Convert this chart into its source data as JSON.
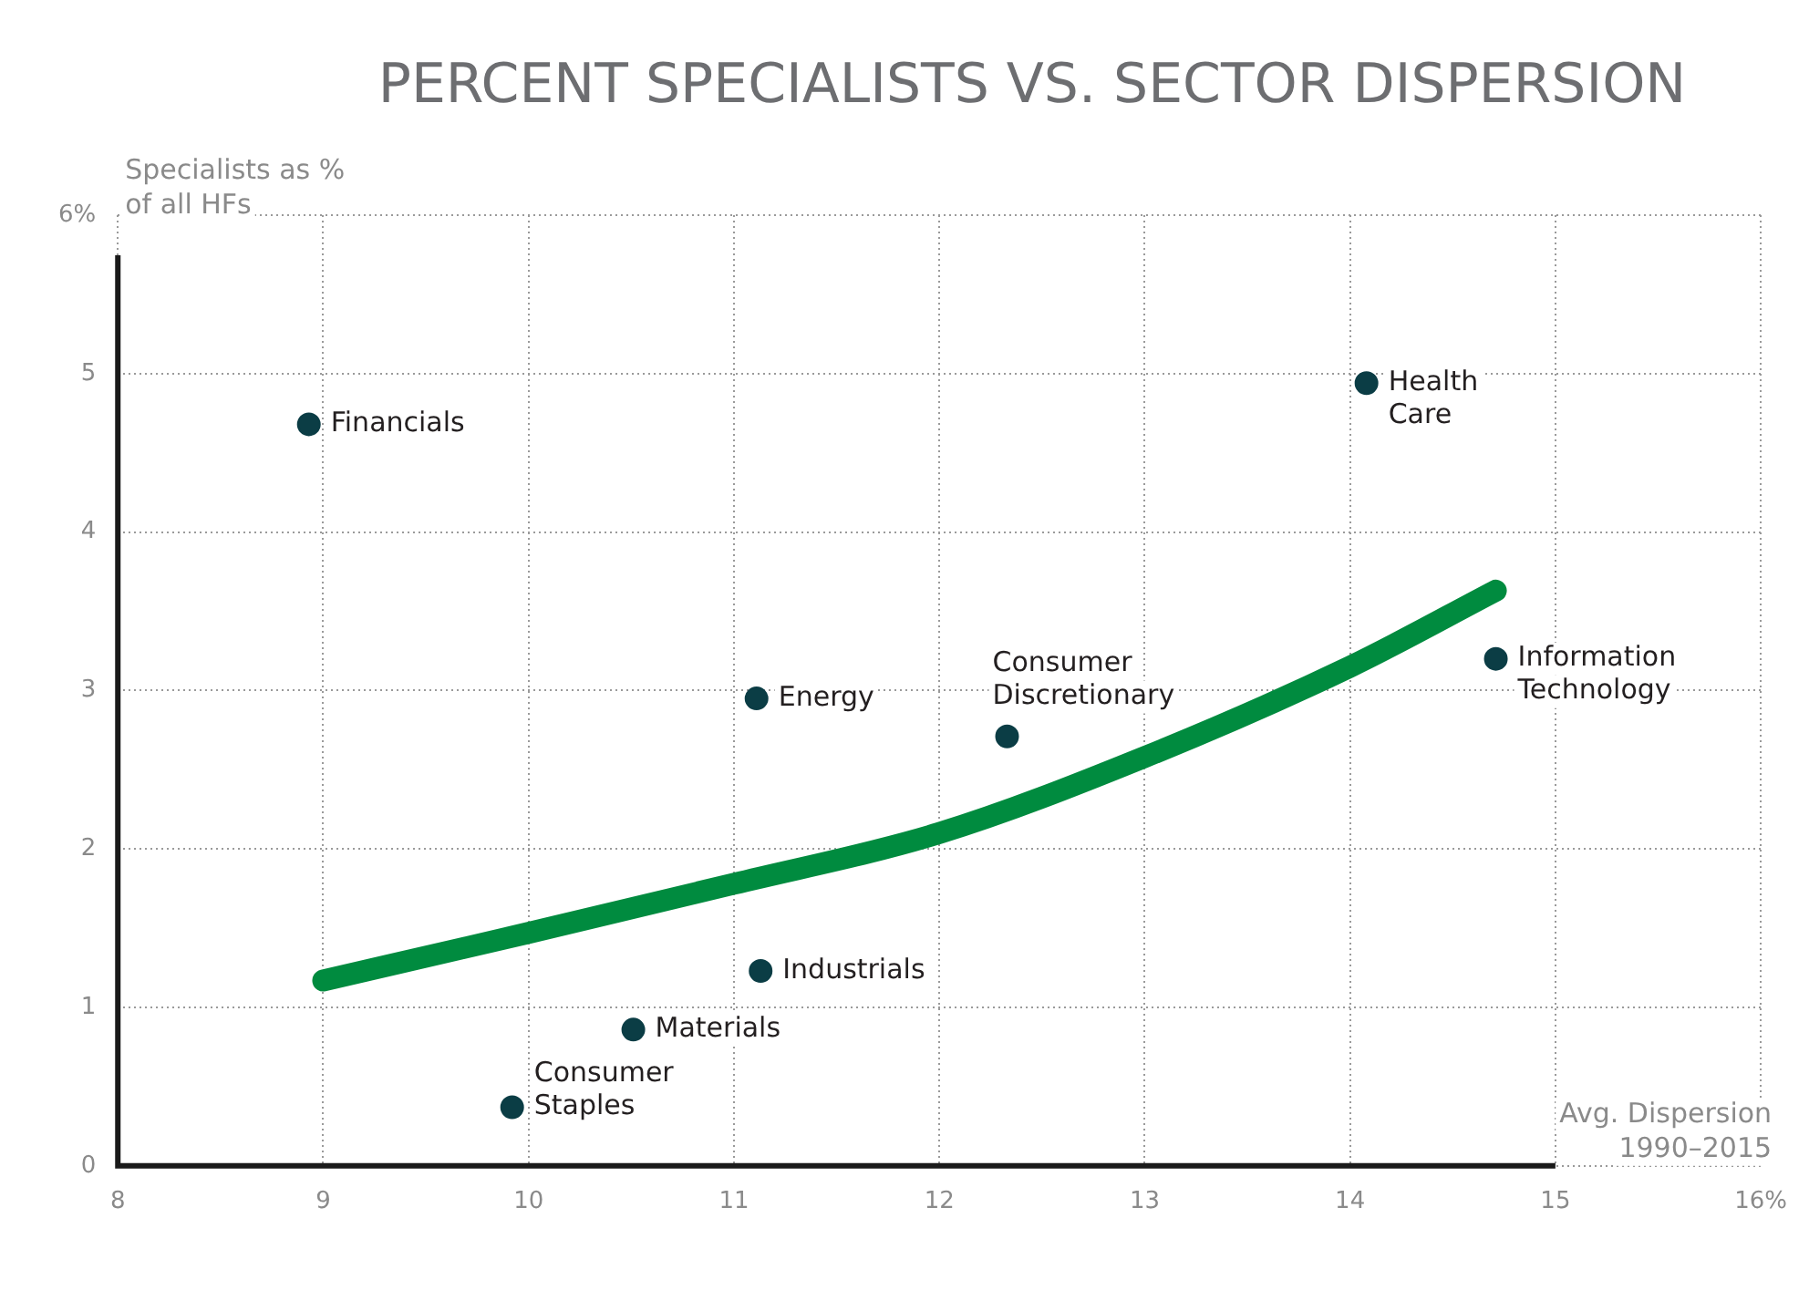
{
  "chart_data": {
    "type": "scatter",
    "title": "PERCENT SPECIALISTS VS. SECTOR DISPERSION",
    "xlabel": "Avg. Dispersion\n1990–2015",
    "ylabel": "Specialists as %\nof all HFs",
    "xlim": [
      8,
      16
    ],
    "xticks": [
      8,
      9,
      10,
      11,
      12,
      13,
      14,
      15,
      {
        "value": 16,
        "label": "16%"
      }
    ],
    "ylim": [
      0,
      6
    ],
    "yticks": [
      0,
      1,
      2,
      3,
      4,
      5,
      {
        "value": 6,
        "label": "6%"
      }
    ],
    "grid": true,
    "series": [
      {
        "marker": "circle",
        "color": "#0b3d45",
        "x": [
          8.93,
          14.08,
          11.11,
          12.33,
          14.71,
          11.13,
          10.51,
          9.92
        ],
        "values": [
          4.68,
          4.94,
          2.95,
          2.71,
          3.2,
          1.23,
          0.86,
          0.37
        ]
      },
      {
        "type": "line",
        "color": "#008b3f",
        "x": [
          9,
          10,
          11,
          12,
          13,
          14,
          14.71
        ],
        "values": [
          1.17,
          1.47,
          1.78,
          2.1,
          2.58,
          3.15,
          3.63
        ]
      }
    ],
    "annotations": [
      {
        "text": "Financials",
        "x": 8.93,
        "y": 4.68
      },
      {
        "text": "Health\nCare",
        "x": 14.08,
        "y": 4.94
      },
      {
        "text": "Energy",
        "x": 11.11,
        "y": 2.95
      },
      {
        "text": "Consumer\nDiscretionary",
        "x": 12.33,
        "y": 2.71
      },
      {
        "text": "Information\nTechnology",
        "x": 14.71,
        "y": 3.2
      },
      {
        "text": "Industrials",
        "x": 11.13,
        "y": 1.23
      },
      {
        "text": "Materials",
        "x": 10.51,
        "y": 0.86
      },
      {
        "text": "Consumer\nStaples",
        "x": 9.92,
        "y": 0.37
      }
    ]
  }
}
